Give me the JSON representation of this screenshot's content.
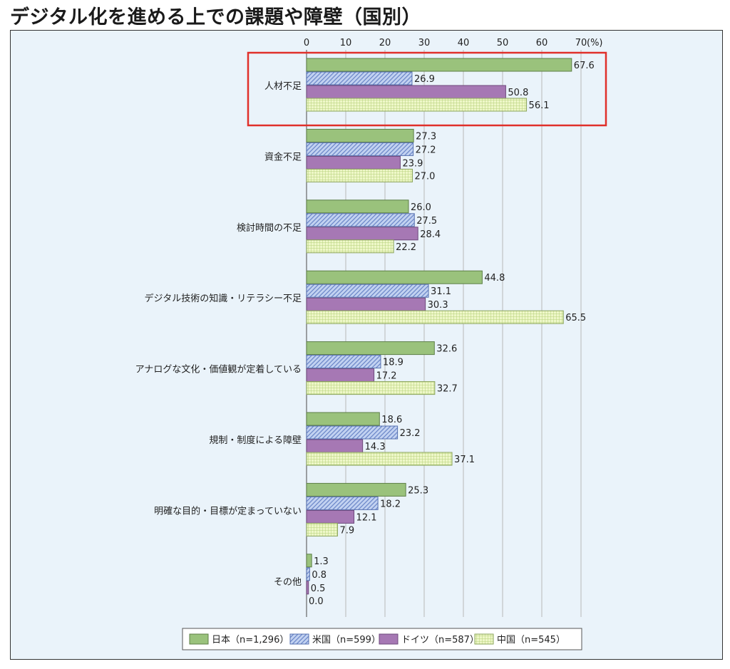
{
  "title": "デジタル化を進める上での課題や障壁（国別）",
  "colors": {
    "japan_fill": "#9ac27c",
    "japan_stroke": "#5d7f46",
    "usa_fill": "#c2d2f1",
    "usa_hatch": "#6a86c8",
    "usa_stroke": "#5570b0",
    "germany_fill": "#a678b4",
    "germany_stroke": "#6e4a7c",
    "china_fill": "#eef7c8",
    "china_grid": "#b6d07a",
    "china_stroke": "#8aa45a",
    "highlight": "#e0302a",
    "gridline": "#b8b8b8"
  },
  "chart_data": {
    "type": "bar",
    "orientation": "horizontal",
    "xlim": [
      0,
      70
    ],
    "ticks": [
      "0",
      "10",
      "20",
      "30",
      "40",
      "50",
      "60",
      "70"
    ],
    "unit_label": "(%)",
    "grid": true,
    "legend_position": "bottom",
    "highlighted_category": "人材不足",
    "categories": [
      "人材不足",
      "資金不足",
      "検討時間の不足",
      "デジタル技術の知識・リテラシー不足",
      "アナログな文化・価値観が定着している",
      "規制・制度による障壁",
      "明確な目的・目標が定まっていない",
      "その他"
    ],
    "series": [
      {
        "name": "日本",
        "legend_label": "日本（n=1,296）",
        "values": [
          67.6,
          27.3,
          26.0,
          44.8,
          32.6,
          18.6,
          25.3,
          1.3
        ],
        "labels": [
          "67.6",
          "27.3",
          "26.0",
          "44.8",
          "32.6",
          "18.6",
          "25.3",
          "1.3"
        ]
      },
      {
        "name": "米国",
        "legend_label": "米国（n=599）",
        "values": [
          26.9,
          27.2,
          27.5,
          31.1,
          18.9,
          23.2,
          18.2,
          0.8
        ],
        "labels": [
          "26.9",
          "27.2",
          "27.5",
          "31.1",
          "18.9",
          "23.2",
          "18.2",
          "0.8"
        ]
      },
      {
        "name": "ドイツ",
        "legend_label": "ドイツ（n=587）",
        "values": [
          50.8,
          23.9,
          28.4,
          30.3,
          17.2,
          14.3,
          12.1,
          0.5
        ],
        "labels": [
          "50.8",
          "23.9",
          "28.4",
          "30.3",
          "17.2",
          "14.3",
          "12.1",
          "0.5"
        ]
      },
      {
        "name": "中国",
        "legend_label": "中国（n=545）",
        "values": [
          56.1,
          27.0,
          22.2,
          65.5,
          32.7,
          37.1,
          7.9,
          0.0
        ],
        "labels": [
          "56.1",
          "27.0",
          "22.2",
          "65.5",
          "32.7",
          "37.1",
          "7.9",
          "0.0"
        ]
      }
    ]
  }
}
